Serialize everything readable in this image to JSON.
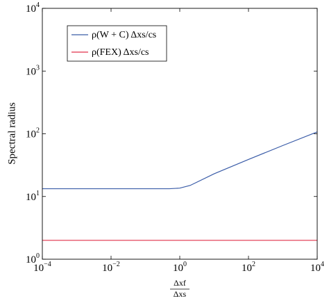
{
  "chart_data": {
    "type": "line",
    "ylabel": "Spectral radius",
    "xlabel": [
      "Δxf",
      "Δxs"
    ],
    "x": [
      0.0001,
      0.01,
      0.5,
      1,
      2,
      10,
      100,
      1000,
      10000
    ],
    "series": [
      {
        "name": "ρ(W + C) Δxs/cs",
        "color": "#3a5ca8",
        "values": [
          13.3,
          13.3,
          13.3,
          13.6,
          15,
          23,
          39,
          65,
          107
        ]
      },
      {
        "name": "ρ(FEX) Δxs/cs",
        "color": "#e0304a",
        "values": [
          2,
          2,
          2,
          2,
          2,
          2,
          2,
          2,
          2
        ]
      }
    ],
    "xscale": "log",
    "yscale": "log",
    "xlim": [
      0.0001,
      10000
    ],
    "ylim": [
      1,
      10000
    ],
    "xticks": [
      {
        "value": 0.0001,
        "label": "10",
        "exp": "−4"
      },
      {
        "value": 0.01,
        "label": "10",
        "exp": "−2"
      },
      {
        "value": 1,
        "label": "10",
        "exp": "0"
      },
      {
        "value": 100,
        "label": "10",
        "exp": "2"
      },
      {
        "value": 10000,
        "label": "10",
        "exp": "4"
      }
    ],
    "yticks": [
      {
        "value": 1,
        "label": "10",
        "exp": "0"
      },
      {
        "value": 10,
        "label": "10",
        "exp": "1"
      },
      {
        "value": 100,
        "label": "10",
        "exp": "2"
      },
      {
        "value": 1000,
        "label": "10",
        "exp": "3"
      },
      {
        "value": 10000,
        "label": "10",
        "exp": "4"
      }
    ],
    "legend": "upper left"
  }
}
